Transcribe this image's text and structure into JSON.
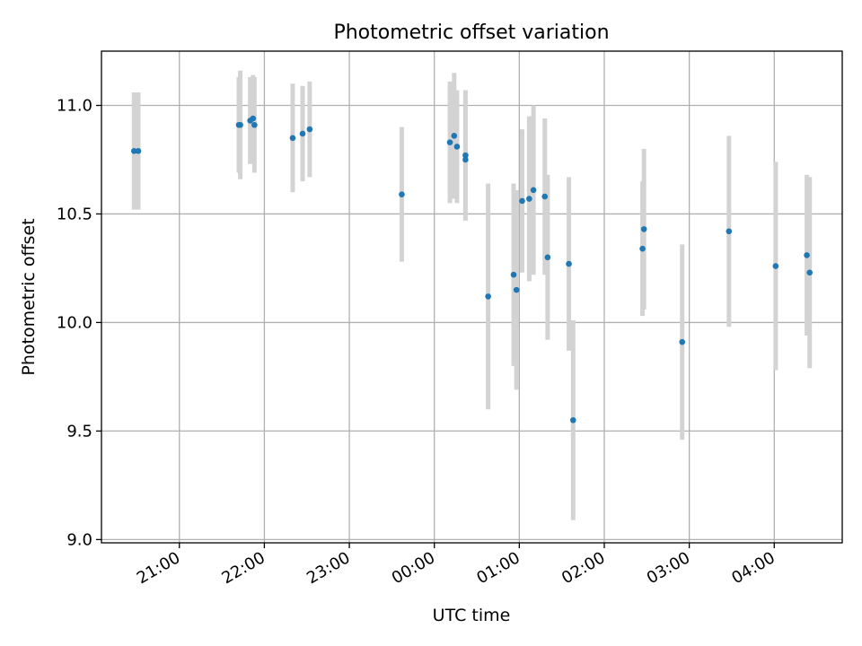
{
  "chart_data": {
    "type": "scatter",
    "title": "Photometric offset variation",
    "xlabel": "UTC time",
    "ylabel": "Photometric offset",
    "xlim": [
      "20:05",
      "04:48"
    ],
    "ylim": [
      8.985,
      11.25
    ],
    "x_ticks": [
      "21:00",
      "22:00",
      "23:00",
      "00:00",
      "01:00",
      "02:00",
      "03:00",
      "04:00"
    ],
    "y_ticks": [
      "9.0",
      "9.5",
      "10.0",
      "10.5",
      "11.0"
    ],
    "y_tick_values": [
      9.0,
      9.5,
      10.0,
      10.5,
      11.0
    ],
    "grid": true,
    "colors": {
      "points": "#1f77b4",
      "errorbars": "#d3d3d3"
    },
    "series": [
      {
        "x": [
          "20:28",
          "20:31",
          "21:42",
          "21:43",
          "21:50",
          "21:52",
          "21:53",
          "22:20",
          "22:27",
          "22:32",
          "23:37",
          "00:11",
          "00:14",
          "00:16",
          "00:22",
          "00:22",
          "00:38",
          "00:56",
          "00:58",
          "01:02",
          "01:07",
          "01:10",
          "01:18",
          "01:20",
          "01:35",
          "01:38",
          "02:27",
          "02:28",
          "02:55",
          "03:28",
          "04:01",
          "04:23",
          "04:25"
        ],
        "y": [
          10.79,
          10.79,
          10.91,
          10.91,
          10.93,
          10.94,
          10.91,
          10.85,
          10.87,
          10.89,
          10.59,
          10.83,
          10.86,
          10.81,
          10.77,
          10.75,
          10.12,
          10.22,
          10.15,
          10.56,
          10.57,
          10.61,
          10.58,
          10.3,
          10.27,
          9.55,
          10.34,
          10.43,
          9.91,
          10.42,
          10.26,
          10.31,
          10.23
        ],
        "err": [
          0.27,
          0.27,
          0.22,
          0.25,
          0.2,
          0.2,
          0.22,
          0.25,
          0.22,
          0.22,
          0.31,
          0.28,
          0.29,
          0.26,
          0.3,
          0.28,
          0.52,
          0.42,
          0.46,
          0.33,
          0.38,
          0.39,
          0.36,
          0.38,
          0.4,
          0.46,
          0.31,
          0.37,
          0.45,
          0.44,
          0.48,
          0.37,
          0.44
        ]
      }
    ]
  }
}
